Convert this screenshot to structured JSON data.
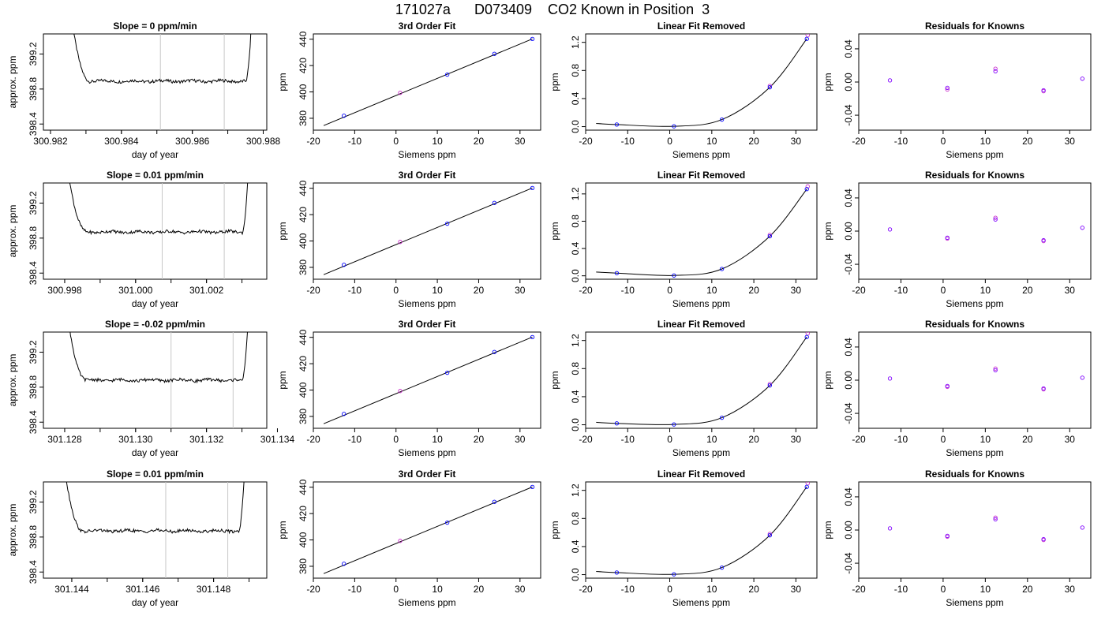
{
  "page": {
    "title": "171027a      D073409    CO2 Known in Position  3"
  },
  "colors": {
    "axis": "#000000",
    "trace": "#000000",
    "vline": "#c8c8c8",
    "known_blue": "#0000ff",
    "known_magenta": "#cc33cc",
    "known_purple": "#7f00ff"
  },
  "chart_data": [
    {
      "row": 0,
      "type": "line",
      "title": "Slope =  0  ppm/min",
      "xlabel": "day of year",
      "ylabel": "approx. ppm",
      "xlim": [
        300.9818,
        300.9881
      ],
      "ylim": [
        398.33,
        399.43
      ],
      "xticks": [
        "300.982",
        "300.984",
        "300.986",
        "300.988"
      ],
      "yticks": [
        "398.4",
        "398.8",
        "399.2"
      ],
      "trace_start": 300.98245,
      "trace_end": 300.98775,
      "vlines": [
        300.9851,
        300.9869
      ],
      "level": 398.89
    },
    {
      "row": 0,
      "type": "scatter",
      "title": "3rd Order Fit",
      "xlabel": "Siemens ppm",
      "ylabel": "ppm",
      "xlim": [
        -20,
        35
      ],
      "ylim": [
        371,
        444
      ],
      "xticks": [
        "-20",
        "-10",
        "0",
        "10",
        "20",
        "30"
      ],
      "yticks": [
        "380",
        "400",
        "420",
        "440"
      ],
      "points": [
        [
          -12.6,
          381.9
        ],
        [
          1.0,
          399.3
        ],
        [
          12.4,
          413.1
        ],
        [
          23.8,
          428.9
        ],
        [
          33.0,
          440.2
        ]
      ],
      "fit_line": [
        [
          -17.5,
          374.5
        ],
        [
          33.0,
          440.2
        ]
      ]
    },
    {
      "row": 0,
      "type": "scatter",
      "title": "Linear Fit Removed",
      "xlabel": "Siemens ppm",
      "ylabel": "ppm",
      "xlim": [
        -20,
        35
      ],
      "ylim": [
        -0.05,
        1.32
      ],
      "xticks": [
        "-20",
        "-10",
        "0",
        "10",
        "20",
        "30"
      ],
      "yticks": [
        "0.0",
        "0.4",
        "0.8",
        "1.2"
      ],
      "points": [
        [
          -12.6,
          0.03
        ],
        [
          1.0,
          0.005
        ],
        [
          12.4,
          0.1
        ],
        [
          23.8,
          0.56
        ],
        [
          32.6,
          1.25
        ]
      ],
      "extra_points": [
        [
          23.8,
          0.58
        ],
        [
          32.8,
          1.3
        ]
      ]
    },
    {
      "row": 0,
      "type": "scatter",
      "title": "Residuals for Knowns",
      "xlabel": "Siemens ppm",
      "ylabel": "ppm",
      "xlim": [
        -20,
        35
      ],
      "ylim": [
        -0.058,
        0.058
      ],
      "xticks": [
        "-20",
        "-10",
        "0",
        "10",
        "20",
        "30"
      ],
      "yticks": [
        "-0.04",
        "0.00",
        "0.04"
      ],
      "points": [
        [
          -12.6,
          0.002
        ],
        [
          1.0,
          -0.007
        ],
        [
          12.4,
          0.013
        ],
        [
          23.8,
          -0.01
        ],
        [
          33.0,
          0.004
        ]
      ],
      "extra_points": [
        [
          1.0,
          -0.009
        ],
        [
          12.4,
          0.016
        ],
        [
          23.8,
          -0.011
        ]
      ]
    },
    {
      "row": 1,
      "type": "line",
      "title": "Slope =  0.01  ppm/min",
      "xlabel": "day of year",
      "ylabel": "approx. ppm",
      "xlim": [
        300.9974,
        301.0037
      ],
      "ylim": [
        398.33,
        399.43
      ],
      "xticks": [
        "300.998",
        "301.000",
        "301.002"
      ],
      "yticks": [
        "398.4",
        "398.8",
        "399.2"
      ],
      "trace_start": 300.99795,
      "trace_end": 301.00325,
      "vlines": [
        301.00075,
        301.0025
      ],
      "level": 398.87
    },
    {
      "row": 1,
      "type": "scatter",
      "title": "3rd Order Fit",
      "xlabel": "Siemens ppm",
      "ylabel": "ppm",
      "xlim": [
        -20,
        35
      ],
      "ylim": [
        371,
        444
      ],
      "xticks": [
        "-20",
        "-10",
        "0",
        "10",
        "20",
        "30"
      ],
      "yticks": [
        "380",
        "400",
        "420",
        "440"
      ],
      "points": [
        [
          -12.6,
          381.9
        ],
        [
          1.0,
          399.3
        ],
        [
          12.4,
          413.1
        ],
        [
          23.8,
          428.9
        ],
        [
          33.0,
          440.2
        ]
      ],
      "fit_line": [
        [
          -17.5,
          374.5
        ],
        [
          33.0,
          440.2
        ]
      ]
    },
    {
      "row": 1,
      "type": "scatter",
      "title": "Linear Fit Removed",
      "xlabel": "Siemens ppm",
      "ylabel": "ppm",
      "xlim": [
        -20,
        35
      ],
      "ylim": [
        -0.05,
        1.36
      ],
      "xticks": [
        "-20",
        "-10",
        "0",
        "10",
        "20",
        "30"
      ],
      "yticks": [
        "0.0",
        "0.4",
        "0.8",
        "1.2"
      ],
      "points": [
        [
          -12.6,
          0.04
        ],
        [
          1.0,
          0.005
        ],
        [
          12.4,
          0.1
        ],
        [
          23.8,
          0.58
        ],
        [
          32.6,
          1.27
        ]
      ],
      "extra_points": [
        [
          23.8,
          0.6
        ],
        [
          32.8,
          1.31
        ]
      ]
    },
    {
      "row": 1,
      "type": "scatter",
      "title": "Residuals for Knowns",
      "xlabel": "Siemens ppm",
      "ylabel": "ppm",
      "xlim": [
        -20,
        35
      ],
      "ylim": [
        -0.058,
        0.058
      ],
      "xticks": [
        "-20",
        "-10",
        "0",
        "10",
        "20",
        "30"
      ],
      "yticks": [
        "-0.04",
        "0.00",
        "0.04"
      ],
      "points": [
        [
          -12.6,
          0.002
        ],
        [
          1.0,
          -0.008
        ],
        [
          12.4,
          0.014
        ],
        [
          23.8,
          -0.011
        ],
        [
          33.0,
          0.004
        ]
      ],
      "extra_points": [
        [
          1.0,
          -0.009
        ],
        [
          12.4,
          0.016
        ],
        [
          23.8,
          -0.012
        ]
      ]
    },
    {
      "row": 2,
      "type": "line",
      "title": "Slope =  -0.02  ppm/min",
      "xlabel": "day of year",
      "ylabel": "approx. ppm",
      "xlim": [
        301.1274,
        301.1337
      ],
      "ylim": [
        398.33,
        399.43
      ],
      "xticks": [
        "301.128",
        "301.130",
        "301.132",
        "301.134"
      ],
      "yticks": [
        "398.4",
        "398.8",
        "399.2"
      ],
      "trace_start": 301.12795,
      "trace_end": 301.13325,
      "vlines": [
        301.131,
        301.13275
      ],
      "level": 398.88
    },
    {
      "row": 2,
      "type": "scatter",
      "title": "3rd Order Fit",
      "xlabel": "Siemens ppm",
      "ylabel": "ppm",
      "xlim": [
        -20,
        35
      ],
      "ylim": [
        371,
        444
      ],
      "xticks": [
        "-20",
        "-10",
        "0",
        "10",
        "20",
        "30"
      ],
      "yticks": [
        "380",
        "400",
        "420",
        "440"
      ],
      "points": [
        [
          -12.6,
          381.9
        ],
        [
          1.0,
          399.3
        ],
        [
          12.4,
          413.1
        ],
        [
          23.8,
          428.9
        ],
        [
          33.0,
          440.2
        ]
      ],
      "fit_line": [
        [
          -17.5,
          374.5
        ],
        [
          33.0,
          440.2
        ]
      ]
    },
    {
      "row": 2,
      "type": "scatter",
      "title": "Linear Fit Removed",
      "xlabel": "Siemens ppm",
      "ylabel": "ppm",
      "xlim": [
        -20,
        35
      ],
      "ylim": [
        -0.05,
        1.32
      ],
      "xticks": [
        "-20",
        "-10",
        "0",
        "10",
        "20",
        "30"
      ],
      "yticks": [
        "0.0",
        "0.4",
        "0.8",
        "1.2"
      ],
      "points": [
        [
          -12.6,
          0.02
        ],
        [
          1.0,
          0.005
        ],
        [
          12.4,
          0.1
        ],
        [
          23.8,
          0.56
        ],
        [
          32.6,
          1.25
        ]
      ],
      "extra_points": [
        [
          23.8,
          0.58
        ],
        [
          32.8,
          1.3
        ]
      ]
    },
    {
      "row": 2,
      "type": "scatter",
      "title": "Residuals for Knowns",
      "xlabel": "Siemens ppm",
      "ylabel": "ppm",
      "xlim": [
        -20,
        35
      ],
      "ylim": [
        -0.058,
        0.058
      ],
      "xticks": [
        "-20",
        "-10",
        "0",
        "10",
        "20",
        "30"
      ],
      "yticks": [
        "-0.04",
        "0.00",
        "0.04"
      ],
      "points": [
        [
          -12.6,
          0.002
        ],
        [
          1.0,
          -0.007
        ],
        [
          12.4,
          0.012
        ],
        [
          23.8,
          -0.01
        ],
        [
          33.0,
          0.003
        ]
      ],
      "extra_points": [
        [
          1.0,
          -0.008
        ],
        [
          12.4,
          0.014
        ],
        [
          23.8,
          -0.011
        ]
      ]
    },
    {
      "row": 3,
      "type": "line",
      "title": "Slope =  0.01  ppm/min",
      "xlabel": "day of year",
      "ylabel": "approx. ppm",
      "xlim": [
        301.1432,
        301.1495
      ],
      "ylim": [
        398.33,
        399.43
      ],
      "xticks": [
        "301.144",
        "301.146",
        "301.148"
      ],
      "yticks": [
        "398.4",
        "398.8",
        "399.2"
      ],
      "trace_start": 301.14365,
      "trace_end": 301.14895,
      "vlines": [
        301.14665,
        301.1484
      ],
      "level": 398.87
    },
    {
      "row": 3,
      "type": "scatter",
      "title": "3rd Order Fit",
      "xlabel": "Siemens ppm",
      "ylabel": "ppm",
      "xlim": [
        -20,
        35
      ],
      "ylim": [
        371,
        444
      ],
      "xticks": [
        "-20",
        "-10",
        "0",
        "10",
        "20",
        "30"
      ],
      "yticks": [
        "380",
        "400",
        "420",
        "440"
      ],
      "points": [
        [
          -12.6,
          381.9
        ],
        [
          1.0,
          399.3
        ],
        [
          12.4,
          413.1
        ],
        [
          23.8,
          428.9
        ],
        [
          33.0,
          440.2
        ]
      ],
      "fit_line": [
        [
          -17.5,
          374.5
        ],
        [
          33.0,
          440.2
        ]
      ]
    },
    {
      "row": 3,
      "type": "scatter",
      "title": "Linear Fit Removed",
      "xlabel": "Siemens ppm",
      "ylabel": "ppm",
      "xlim": [
        -20,
        35
      ],
      "ylim": [
        -0.05,
        1.32
      ],
      "xticks": [
        "-20",
        "-10",
        "0",
        "10",
        "20",
        "30"
      ],
      "yticks": [
        "0.0",
        "0.4",
        "0.8",
        "1.2"
      ],
      "points": [
        [
          -12.6,
          0.03
        ],
        [
          1.0,
          0.005
        ],
        [
          12.4,
          0.1
        ],
        [
          23.8,
          0.56
        ],
        [
          32.6,
          1.25
        ]
      ],
      "extra_points": [
        [
          23.8,
          0.58
        ],
        [
          32.8,
          1.3
        ]
      ]
    },
    {
      "row": 3,
      "type": "scatter",
      "title": "Residuals for Knowns",
      "xlabel": "Siemens ppm",
      "ylabel": "ppm",
      "xlim": [
        -20,
        35
      ],
      "ylim": [
        -0.058,
        0.058
      ],
      "xticks": [
        "-20",
        "-10",
        "0",
        "10",
        "20",
        "30"
      ],
      "yticks": [
        "-0.04",
        "0.00",
        "0.04"
      ],
      "points": [
        [
          -12.6,
          0.002
        ],
        [
          1.0,
          -0.007
        ],
        [
          12.4,
          0.013
        ],
        [
          23.8,
          -0.011
        ],
        [
          33.0,
          0.003
        ]
      ],
      "extra_points": [
        [
          1.0,
          -0.008
        ],
        [
          12.4,
          0.015
        ],
        [
          23.8,
          -0.012
        ]
      ]
    }
  ]
}
